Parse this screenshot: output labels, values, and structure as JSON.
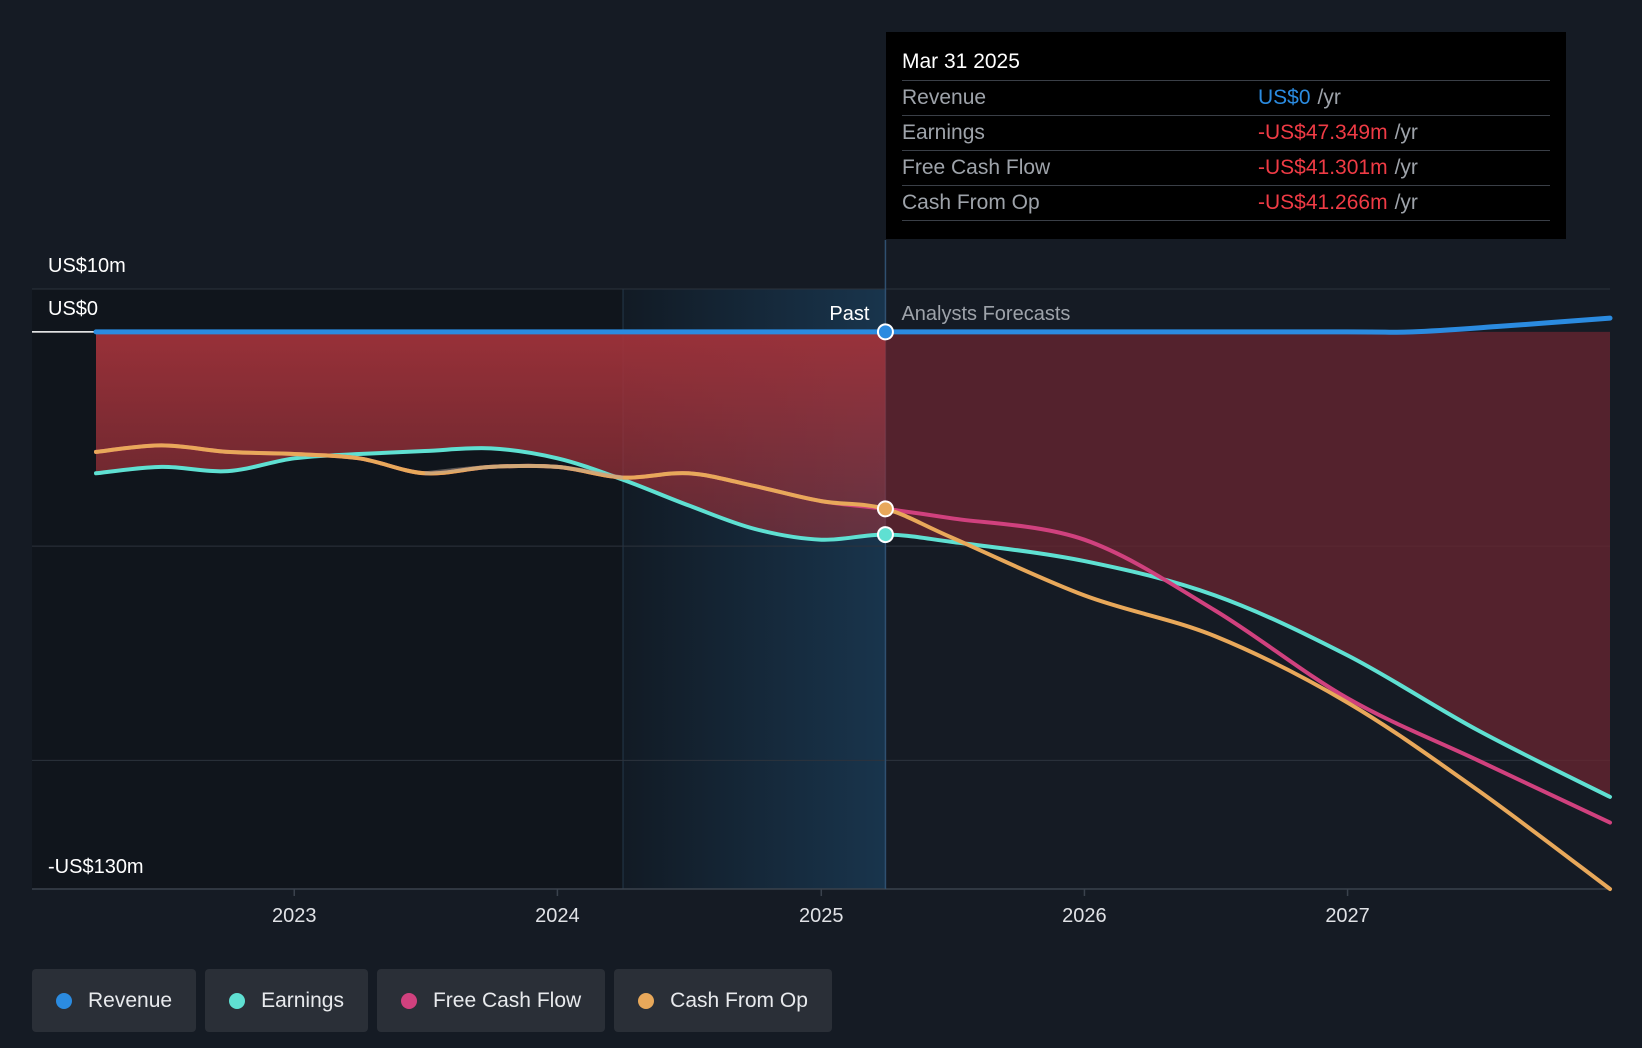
{
  "chart_data": {
    "type": "line",
    "y_axis": {
      "top_label": "US$10m",
      "zero_label": "US$0",
      "bottom_label": "-US$130m",
      "ylim": [
        -130,
        10
      ],
      "unit": "US$m"
    },
    "x_axis": {
      "ticks": [
        "2023",
        "2024",
        "2025",
        "2026",
        "2027"
      ],
      "xlim": [
        "2022-04-01",
        "2027-12-31"
      ]
    },
    "past_label": "Past",
    "forecast_label": "Analysts Forecasts",
    "present_date": "2025-03-31",
    "forecast_band_start": "2024-04-01",
    "series": [
      {
        "name": "Revenue",
        "color": "#2b8be0",
        "points": [
          [
            "2022-04-01",
            0
          ],
          [
            "2023-01-01",
            0
          ],
          [
            "2024-01-01",
            0
          ],
          [
            "2025-03-31",
            0
          ],
          [
            "2026-01-01",
            0
          ],
          [
            "2027-01-01",
            0
          ],
          [
            "2027-04-01",
            0
          ],
          [
            "2027-08-01",
            1.3
          ],
          [
            "2027-12-31",
            3.2
          ]
        ]
      },
      {
        "name": "Earnings",
        "color": "#5fe0d2",
        "points": [
          [
            "2022-04-01",
            -33
          ],
          [
            "2022-07-01",
            -31.5
          ],
          [
            "2022-10-01",
            -32.5
          ],
          [
            "2023-01-01",
            -29.5
          ],
          [
            "2023-04-01",
            -28.5
          ],
          [
            "2023-07-01",
            -27.8
          ],
          [
            "2023-10-01",
            -27.2
          ],
          [
            "2024-01-01",
            -29.5
          ],
          [
            "2024-04-01",
            -34.5
          ],
          [
            "2024-07-01",
            -40.5
          ],
          [
            "2024-10-01",
            -46
          ],
          [
            "2025-01-01",
            -48.5
          ],
          [
            "2025-03-31",
            -47.3
          ],
          [
            "2025-07-01",
            -49
          ],
          [
            "2026-01-01",
            -53.5
          ],
          [
            "2026-07-01",
            -61.5
          ],
          [
            "2027-01-01",
            -75.5
          ],
          [
            "2027-07-01",
            -93
          ],
          [
            "2027-12-31",
            -108.5
          ]
        ]
      },
      {
        "name": "Free Cash Flow",
        "color": "#d0417e",
        "points": [
          [
            "2022-04-01",
            -28
          ],
          [
            "2022-07-01",
            -26.5
          ],
          [
            "2022-10-01",
            -28
          ],
          [
            "2023-01-01",
            -28.5
          ],
          [
            "2023-04-01",
            -29.5
          ],
          [
            "2023-07-01",
            -33
          ],
          [
            "2023-10-01",
            -31.5
          ],
          [
            "2024-01-01",
            -31.5
          ],
          [
            "2024-04-01",
            -34
          ],
          [
            "2024-07-01",
            -33
          ],
          [
            "2024-10-01",
            -36
          ],
          [
            "2025-01-01",
            -39.5
          ],
          [
            "2025-03-31",
            -41.3
          ],
          [
            "2025-07-01",
            -43.5
          ],
          [
            "2026-01-01",
            -48.5
          ],
          [
            "2026-07-01",
            -65
          ],
          [
            "2027-01-01",
            -85.5
          ],
          [
            "2027-07-01",
            -100
          ],
          [
            "2027-12-31",
            -114.5
          ]
        ]
      },
      {
        "name": "Cash From Op",
        "color": "#e8a85a",
        "points": [
          [
            "2022-04-01",
            -28
          ],
          [
            "2022-07-01",
            -26.5
          ],
          [
            "2022-10-01",
            -28
          ],
          [
            "2023-01-01",
            -28.5
          ],
          [
            "2023-04-01",
            -29.5
          ],
          [
            "2023-07-01",
            -33
          ],
          [
            "2023-10-01",
            -31.5
          ],
          [
            "2024-01-01",
            -31.5
          ],
          [
            "2024-04-01",
            -34
          ],
          [
            "2024-07-01",
            -33
          ],
          [
            "2024-10-01",
            -36
          ],
          [
            "2025-01-01",
            -39.5
          ],
          [
            "2025-03-31",
            -41.3
          ],
          [
            "2025-07-01",
            -48
          ],
          [
            "2026-01-01",
            -61.5
          ],
          [
            "2026-07-01",
            -71
          ],
          [
            "2027-01-01",
            -86.5
          ],
          [
            "2027-07-01",
            -107
          ],
          [
            "2027-12-31",
            -130
          ]
        ]
      }
    ]
  },
  "tooltip": {
    "date": "Mar 31 2025",
    "rows": [
      {
        "label": "Revenue",
        "value": "US$0",
        "unit": "/yr",
        "color": "#2b8be0"
      },
      {
        "label": "Earnings",
        "value": "-US$47.349m",
        "unit": "/yr",
        "color": "#ef3b45"
      },
      {
        "label": "Free Cash Flow",
        "value": "-US$41.301m",
        "unit": "/yr",
        "color": "#ef3b45"
      },
      {
        "label": "Cash From Op",
        "value": "-US$41.266m",
        "unit": "/yr",
        "color": "#ef3b45"
      }
    ]
  },
  "legend": [
    {
      "label": "Revenue",
      "color": "#2b8be0"
    },
    {
      "label": "Earnings",
      "color": "#5fe0d2"
    },
    {
      "label": "Free Cash Flow",
      "color": "#d0417e"
    },
    {
      "label": "Cash From Op",
      "color": "#e8a85a"
    }
  ]
}
